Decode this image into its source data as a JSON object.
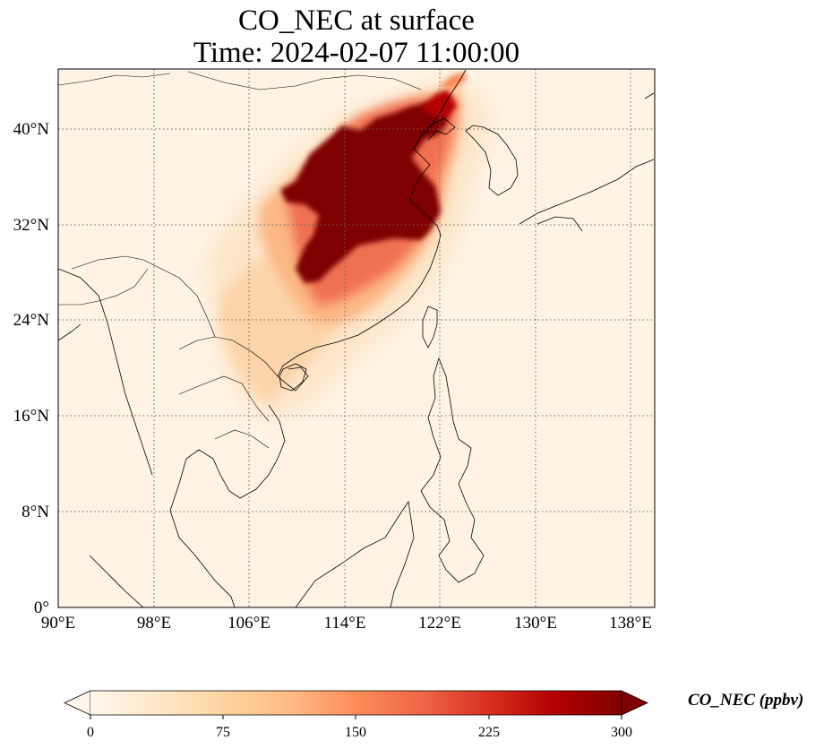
{
  "title": {
    "line1": "CO_NEC at surface",
    "line2": "Time: 2024-02-07 11:00:00"
  },
  "map": {
    "lon_range": [
      90,
      140
    ],
    "lat_range": [
      0,
      44
    ],
    "lon_ticks": [
      "90°E",
      "98°E",
      "106°E",
      "114°E",
      "122°E",
      "130°E",
      "138°E"
    ],
    "lat_ticks": [
      "0°",
      "8°N",
      "16°N",
      "24°N",
      "32°N",
      "40°N"
    ],
    "gridlines": true
  },
  "colorbar": {
    "label": "CO_NEC (ppbv)",
    "ticks": [
      "0",
      "75",
      "150",
      "225",
      "300"
    ],
    "range": [
      0,
      300
    ],
    "extend": "both",
    "colormap": "OrRd",
    "colors": [
      "#fff7ec",
      "#fee8c8",
      "#fdd49e",
      "#fdbb84",
      "#fc8d59",
      "#ef6548",
      "#d7301f",
      "#b30000",
      "#7f0000"
    ]
  }
}
